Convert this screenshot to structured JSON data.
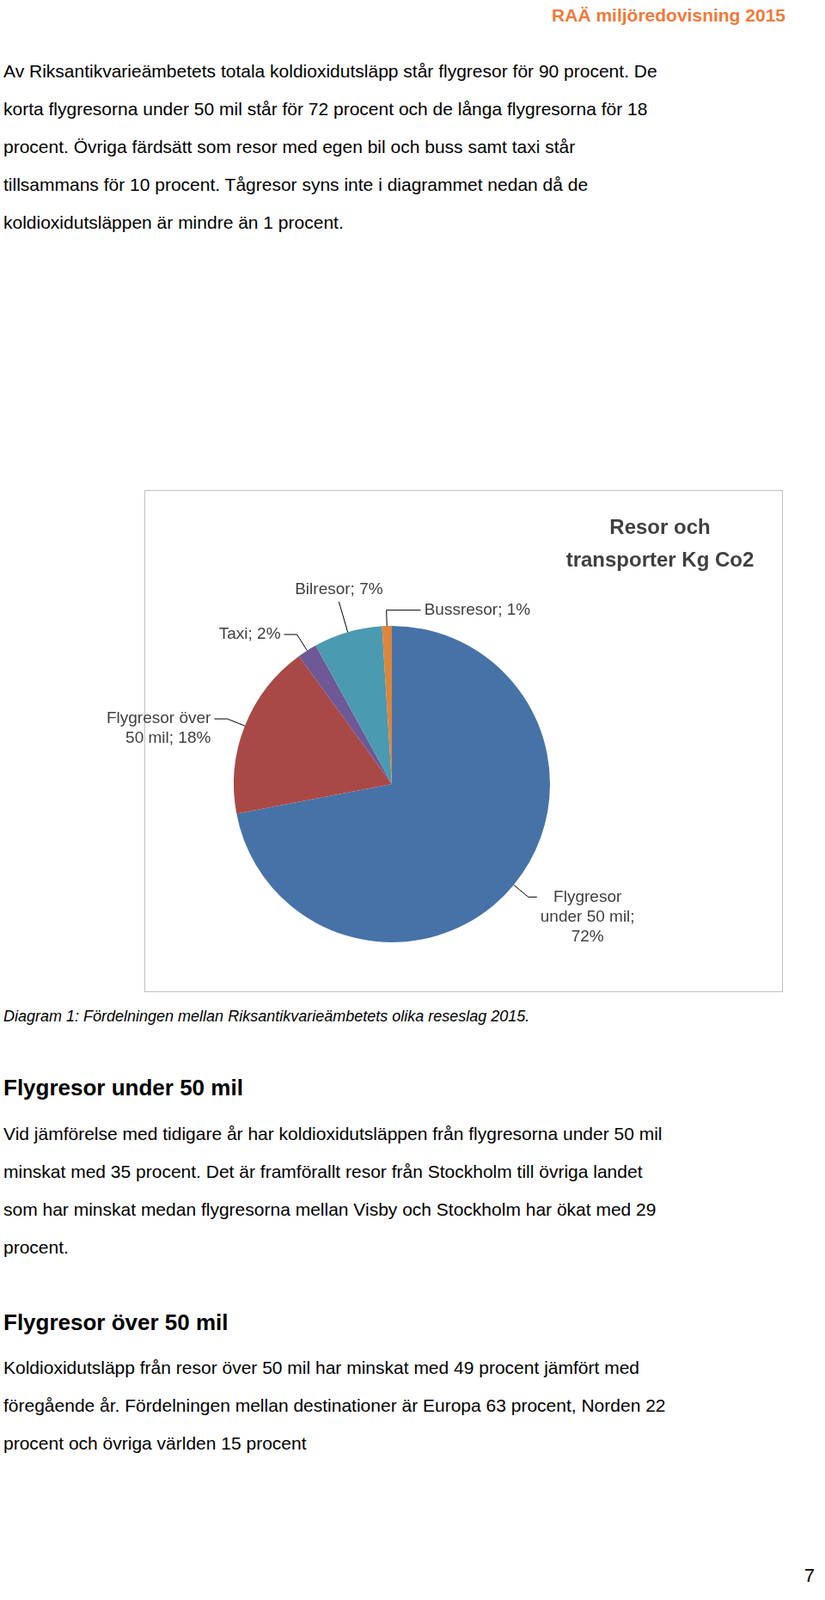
{
  "header": {
    "title": "RAÄ miljöredovisning 2015"
  },
  "intro": {
    "lines": [
      "Av Riksantikvarieämbetets totala koldioxidutsläpp står flygresor för 90 procent. De",
      "korta flygresorna under 50 mil står för 72 procent och de långa flygresorna för 18",
      "procent. Övriga färdsätt som resor med egen bil och buss samt taxi står",
      "tillsammans för 10 procent. Tågresor syns inte i diagrammet nedan då de",
      "koldioxidutsläppen är mindre än 1 procent."
    ]
  },
  "chart_data": {
    "type": "pie",
    "title": "Resor och transporter Kg Co2",
    "categories": [
      "Flygresor under 50 mil",
      "Flygresor över 50 mil",
      "Taxi",
      "Bilresor",
      "Bussresor"
    ],
    "values": [
      72,
      18,
      2,
      7,
      1
    ],
    "value_labels": [
      "Flygresor under 50 mil; 72%",
      "Flygresor över 50 mil; 18%",
      "Taxi; 2%",
      "Bilresor; 7%",
      "Bussresor; 1%"
    ],
    "colors": [
      "#4672a8",
      "#a94946",
      "#6e5895",
      "#4a9ab1",
      "#dc853c"
    ],
    "data_labels": true
  },
  "caption": "Diagram 1: Fördelningen mellan Riksantikvarieämbetets olika reseslag 2015.",
  "sections": [
    {
      "heading": "Flygresor under 50 mil",
      "lines": [
        "Vid jämförelse med tidigare år har koldioxidutsläppen från flygresorna under 50 mil",
        "minskat med 35 procent. Det är framförallt resor från Stockholm till övriga landet",
        "som har minskat medan flygresorna mellan Visby och Stockholm har ökat med 29",
        "procent."
      ]
    },
    {
      "heading": "Flygresor över 50 mil",
      "lines": [
        "Koldioxidutsläpp från resor över 50 mil har minskat med 49 procent jämfört med",
        "föregående år. Fördelningen mellan destinationer är Europa 63 procent, Norden 22",
        "procent och övriga världen 15 procent"
      ]
    }
  ],
  "page_number": 7
}
